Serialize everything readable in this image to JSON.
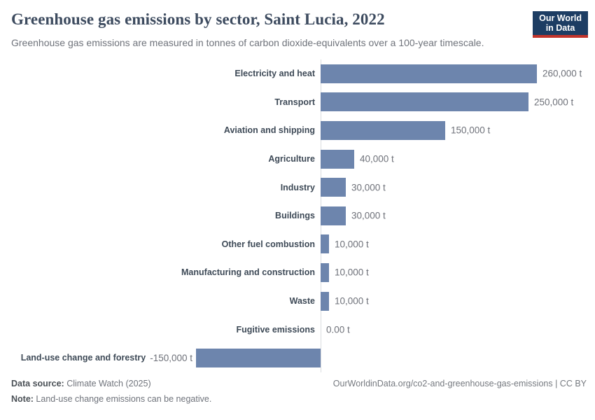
{
  "header": {
    "title": "Greenhouse gas emissions by sector, Saint Lucia, 2022",
    "subtitle": "Greenhouse gas emissions are measured in tonnes of carbon dioxide-equivalents over a 100-year timescale.",
    "logo": {
      "line1": "Our World",
      "line2": "in Data"
    }
  },
  "chart_data": {
    "type": "bar",
    "orientation": "horizontal",
    "title": "Greenhouse gas emissions by sector, Saint Lucia, 2022",
    "unit": "t",
    "categories": [
      "Electricity and heat",
      "Transport",
      "Aviation and shipping",
      "Agriculture",
      "Industry",
      "Buildings",
      "Other fuel combustion",
      "Manufacturing and construction",
      "Waste",
      "Fugitive emissions",
      "Land-use change and forestry"
    ],
    "values": [
      260000,
      250000,
      150000,
      40000,
      30000,
      30000,
      10000,
      10000,
      10000,
      0,
      -150000
    ],
    "value_labels": [
      "260,000 t",
      "250,000 t",
      "150,000 t",
      "40,000 t",
      "30,000 t",
      "30,000 t",
      "10,000 t",
      "10,000 t",
      "10,000 t",
      "0.00 t",
      "-150,000 t"
    ],
    "xlim": [
      -150000,
      260000
    ],
    "grid": false,
    "legend": "none",
    "bar_color": "#6d85ad",
    "axis_color": "#d9dce0"
  },
  "footer": {
    "source_label": "Data source:",
    "source_value": " Climate Watch (2025)",
    "note_label": "Note:",
    "note_value": " Land-use change emissions can be negative.",
    "url": "OurWorldinData.org/co2-and-greenhouse-gas-emissions | CC BY"
  },
  "colors": {
    "bar": "#6d85ad",
    "axis": "#d9dce0",
    "title": "#3d4b5f",
    "subtitle": "#6f737b",
    "category_label": "#3e4a57",
    "value_label": "#6e7179",
    "logo_bg": "#1d3d63",
    "logo_red": "#c2342b"
  }
}
